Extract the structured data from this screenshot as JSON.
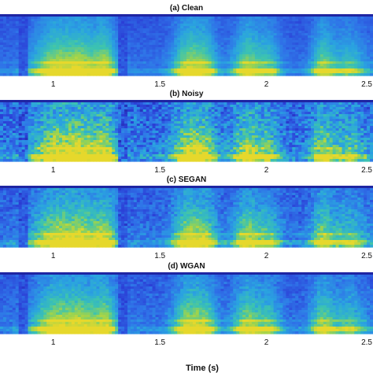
{
  "chart_data": {
    "type": "heatmap",
    "xlabel": "Time (s)",
    "x_ticks": [
      "1",
      "1.5",
      "2",
      "2.5"
    ],
    "x_tick_values": [
      1,
      1.5,
      2,
      2.5
    ],
    "xlim": [
      0.75,
      2.5
    ],
    "colormap": [
      "#1a1a8c",
      "#2b3fd6",
      "#2f73e8",
      "#2aa3e0",
      "#3cc3b0",
      "#9ad350",
      "#e6d82c"
    ],
    "panels": [
      {
        "title": "(a) Clean"
      },
      {
        "title": "(b) Noisy"
      },
      {
        "title": "(c) SEGAN"
      },
      {
        "title": "(d) WGAN"
      }
    ],
    "show_xlabel_on_last_only": true
  }
}
